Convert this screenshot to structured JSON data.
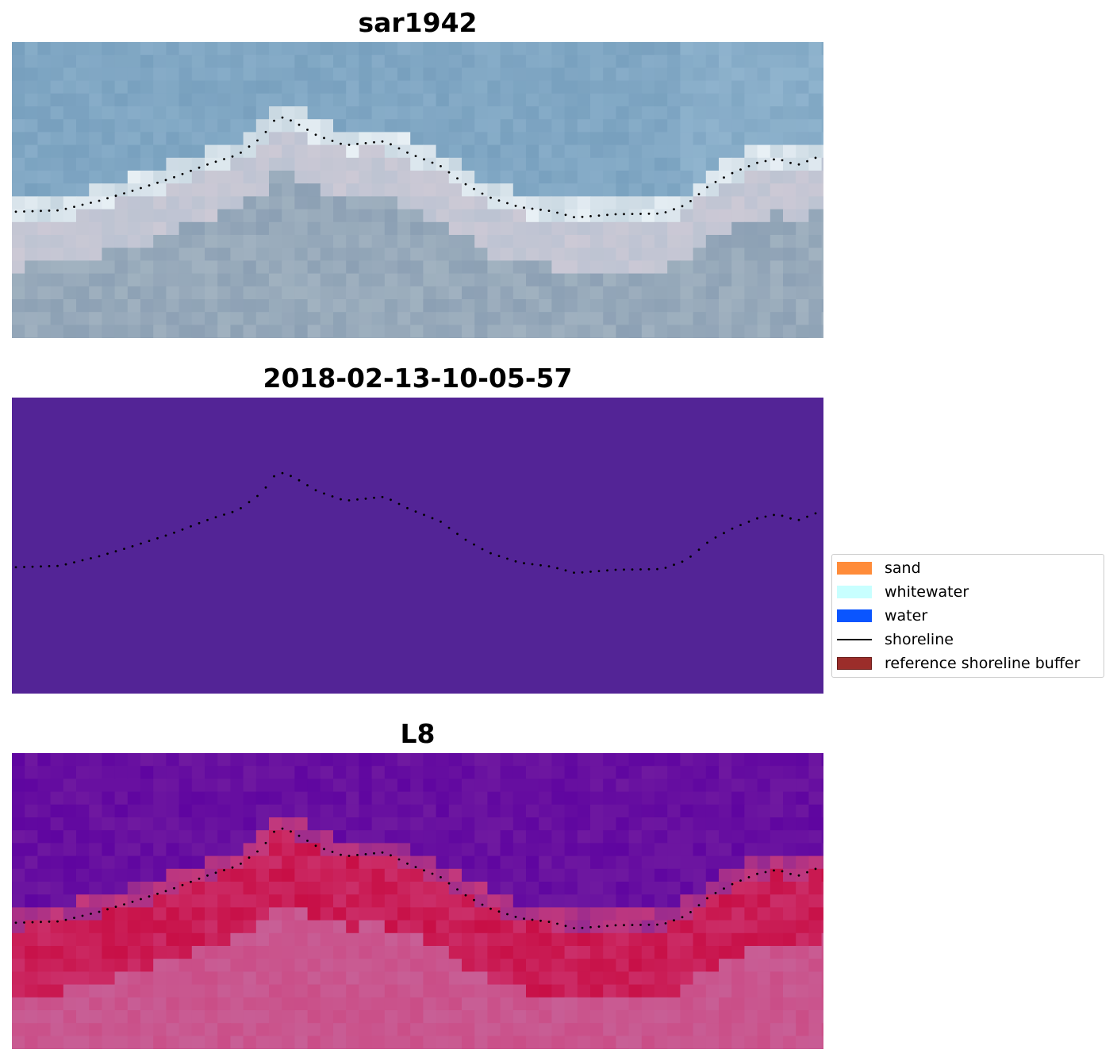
{
  "panels": [
    {
      "id": "rgb",
      "title": "sar1942",
      "colormap": "rgb"
    },
    {
      "id": "classified",
      "title": "2018-02-13-10-05-57",
      "colormap": "classified",
      "fill": "#532496"
    },
    {
      "id": "index",
      "title": "L8",
      "colormap": "plasma"
    }
  ],
  "legend": {
    "items": [
      {
        "label": "sand",
        "color": "#ff8c3a",
        "kind": "patch"
      },
      {
        "label": "whitewater",
        "color": "#c8ffff",
        "kind": "patch"
      },
      {
        "label": "water",
        "color": "#0a55ff",
        "kind": "patch"
      },
      {
        "label": "shoreline",
        "color": "#000000",
        "kind": "line"
      },
      {
        "label": "reference shoreline buffer",
        "color": "#9b2d2a",
        "kind": "patch"
      }
    ]
  },
  "colors": {
    "shoreline_dot": "#000000",
    "background": "#ffffff"
  }
}
